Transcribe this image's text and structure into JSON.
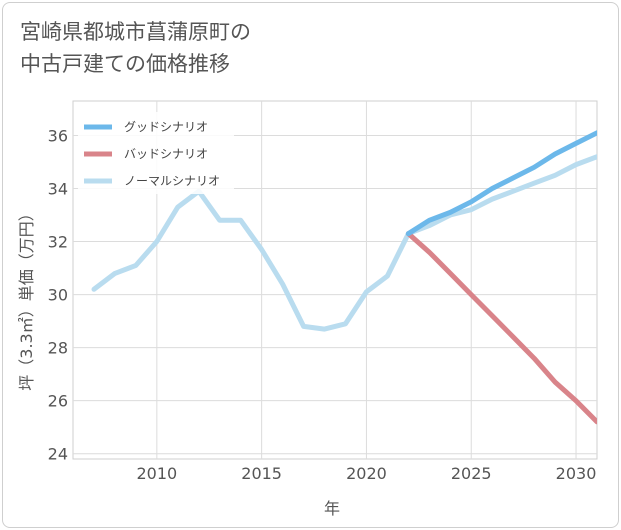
{
  "title_lines": [
    "宮崎県都城市菖蒲原町の",
    "中古戸建ての価格推移"
  ],
  "chart_data": {
    "type": "line",
    "xlabel": "年",
    "ylabel": "坪（3.3㎡）単価（万円）",
    "xlim": [
      2006,
      2031
    ],
    "ylim": [
      23.8,
      37.3
    ],
    "x_ticks": [
      2010,
      2015,
      2020,
      2025,
      2030
    ],
    "y_ticks": [
      24,
      26,
      28,
      30,
      32,
      34,
      36
    ],
    "grid": true,
    "legend_position": "top-left",
    "series": [
      {
        "name": "グッドシナリオ",
        "color": "#6cb8ea",
        "x": [
          2022,
          2023,
          2024,
          2025,
          2026,
          2027,
          2028,
          2029,
          2030,
          2031
        ],
        "y": [
          32.3,
          32.8,
          33.1,
          33.5,
          34.0,
          34.4,
          34.8,
          35.3,
          35.7,
          36.1
        ]
      },
      {
        "name": "バッドシナリオ",
        "color": "#d9848a",
        "x": [
          2022,
          2023,
          2024,
          2025,
          2026,
          2027,
          2028,
          2029,
          2030,
          2031
        ],
        "y": [
          32.3,
          31.6,
          30.8,
          30.0,
          29.2,
          28.4,
          27.6,
          26.7,
          26.0,
          25.2
        ]
      },
      {
        "name": "ノーマルシナリオ",
        "color": "#b9dcef",
        "x": [
          2007,
          2008,
          2009,
          2010,
          2011,
          2012,
          2013,
          2014,
          2015,
          2016,
          2017,
          2018,
          2019,
          2020,
          2021,
          2022,
          2023,
          2024,
          2025,
          2026,
          2027,
          2028,
          2029,
          2030,
          2031
        ],
        "y": [
          30.2,
          30.8,
          31.1,
          32.0,
          33.3,
          33.9,
          32.8,
          32.8,
          31.7,
          30.4,
          28.8,
          28.7,
          28.9,
          30.1,
          30.7,
          32.3,
          32.6,
          33.0,
          33.2,
          33.6,
          33.9,
          34.2,
          34.5,
          34.9,
          35.2
        ]
      }
    ]
  }
}
